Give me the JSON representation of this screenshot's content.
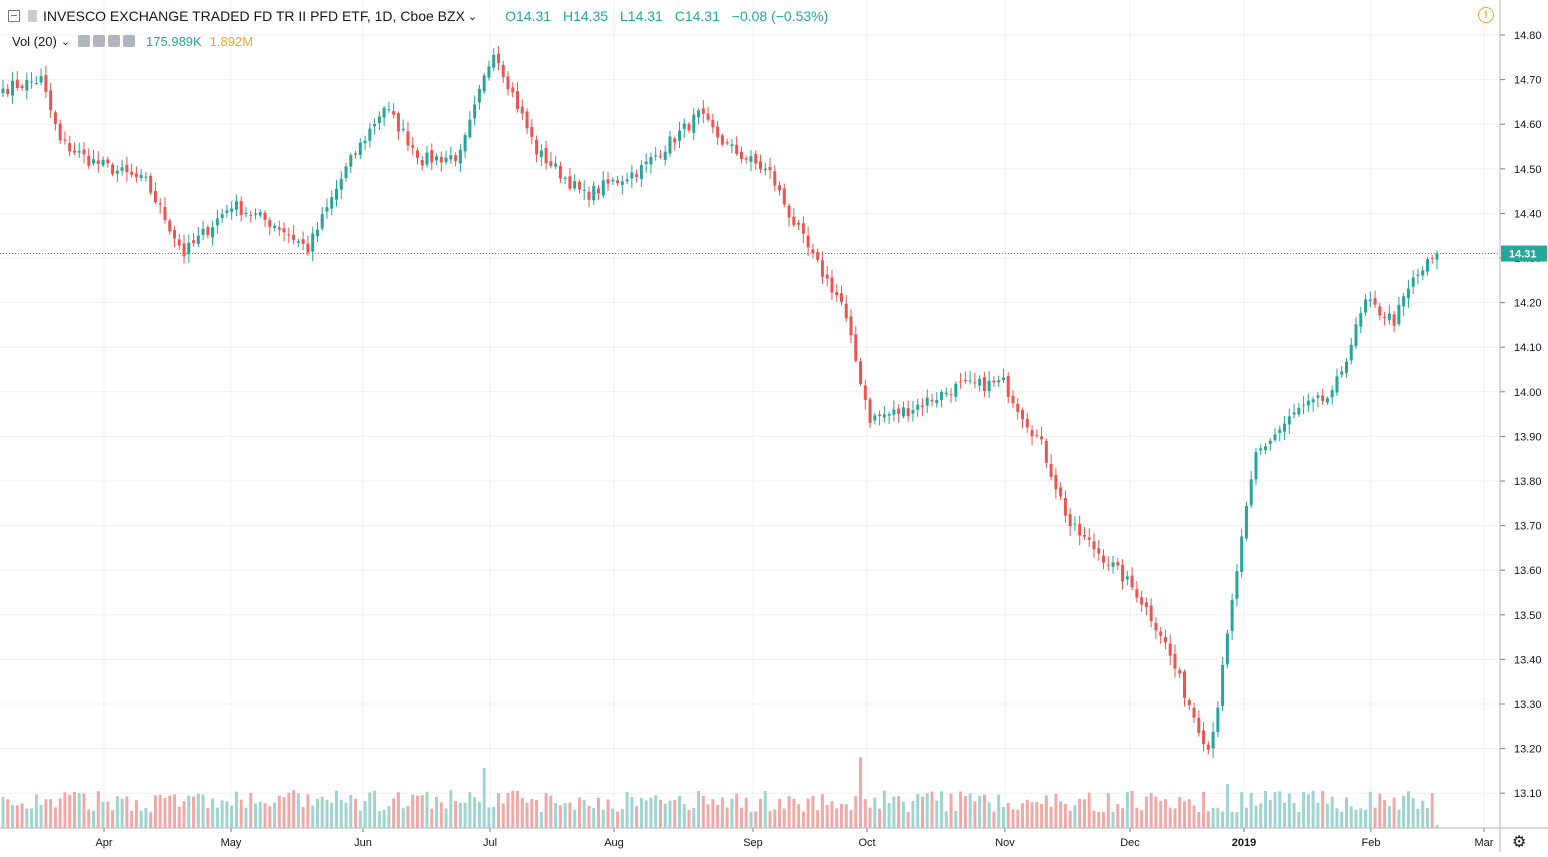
{
  "header": {
    "symbol": "INVESCO EXCHANGE TRADED FD TR II PFD ETF, 1D, Cboe BZX",
    "open": "O14.31",
    "high": "H14.35",
    "low": "L14.31",
    "close": "C14.31",
    "change": "−0.08 (−0.53%)"
  },
  "volume_legend": {
    "label": "Vol (20)",
    "value_a": "175.989K",
    "value_b": "1.892M"
  },
  "colors": {
    "up": "#26a69a",
    "down": "#ef5350",
    "up_volume": "#9fd4cf",
    "down_volume": "#f1a9a7",
    "grid": "#eef0f3",
    "price_tag": "#26a69a"
  },
  "chart_data": {
    "type": "candlestick",
    "last_price_label": "14.31",
    "y_ticks": [
      "14.80",
      "14.70",
      "14.60",
      "14.50",
      "14.40",
      "14.30",
      "14.20",
      "14.10",
      "14.00",
      "13.90",
      "13.80",
      "13.70",
      "13.60",
      "13.50",
      "13.40",
      "13.30",
      "13.20",
      "13.10"
    ],
    "ylim": [
      13.02,
      14.82
    ],
    "x_labels": [
      "Apr",
      "May",
      "Jun",
      "Jul",
      "Aug",
      "Sep",
      "Oct",
      "Nov",
      "Dec",
      "2019",
      "Feb",
      "Mar"
    ],
    "grid": true,
    "waypoints": [
      {
        "i": 0,
        "p": 14.68
      },
      {
        "i": 8,
        "p": 14.7
      },
      {
        "i": 12,
        "p": 14.56
      },
      {
        "i": 18,
        "p": 14.52
      },
      {
        "i": 30,
        "p": 14.47
      },
      {
        "i": 38,
        "p": 14.31
      },
      {
        "i": 48,
        "p": 14.42
      },
      {
        "i": 58,
        "p": 14.37
      },
      {
        "i": 64,
        "p": 14.32
      },
      {
        "i": 72,
        "p": 14.5
      },
      {
        "i": 80,
        "p": 14.64
      },
      {
        "i": 88,
        "p": 14.52
      },
      {
        "i": 96,
        "p": 14.53
      },
      {
        "i": 103,
        "p": 14.77
      },
      {
        "i": 112,
        "p": 14.54
      },
      {
        "i": 122,
        "p": 14.44
      },
      {
        "i": 134,
        "p": 14.5
      },
      {
        "i": 146,
        "p": 14.62
      },
      {
        "i": 152,
        "p": 14.55
      },
      {
        "i": 161,
        "p": 14.49
      },
      {
        "i": 165,
        "p": 14.4
      },
      {
        "i": 170,
        "p": 14.3
      },
      {
        "i": 176,
        "p": 14.2
      },
      {
        "i": 182,
        "p": 13.94
      },
      {
        "i": 190,
        "p": 13.96
      },
      {
        "i": 200,
        "p": 14.01
      },
      {
        "i": 210,
        "p": 14.02
      },
      {
        "i": 218,
        "p": 13.88
      },
      {
        "i": 224,
        "p": 13.7
      },
      {
        "i": 232,
        "p": 13.62
      },
      {
        "i": 238,
        "p": 13.55
      },
      {
        "i": 243,
        "p": 13.46
      },
      {
        "i": 249,
        "p": 13.3
      },
      {
        "i": 253,
        "p": 13.2
      },
      {
        "i": 255,
        "p": 13.3
      },
      {
        "i": 259,
        "p": 13.6
      },
      {
        "i": 263,
        "p": 13.86
      },
      {
        "i": 272,
        "p": 13.96
      },
      {
        "i": 279,
        "p": 13.99
      },
      {
        "i": 286,
        "p": 14.2
      },
      {
        "i": 292,
        "p": 14.16
      },
      {
        "i": 296,
        "p": 14.25
      },
      {
        "i": 301,
        "p": 14.31
      }
    ],
    "volume_spikes": [
      {
        "i": 101,
        "v": 0.95
      },
      {
        "i": 180,
        "v": 1.12
      },
      {
        "i": 183,
        "v": 0.48
      },
      {
        "i": 197,
        "v": 0.58
      },
      {
        "i": 257,
        "v": 0.7
      },
      {
        "i": 232,
        "v": 0.55
      },
      {
        "i": 240,
        "v": 0.5
      }
    ]
  }
}
